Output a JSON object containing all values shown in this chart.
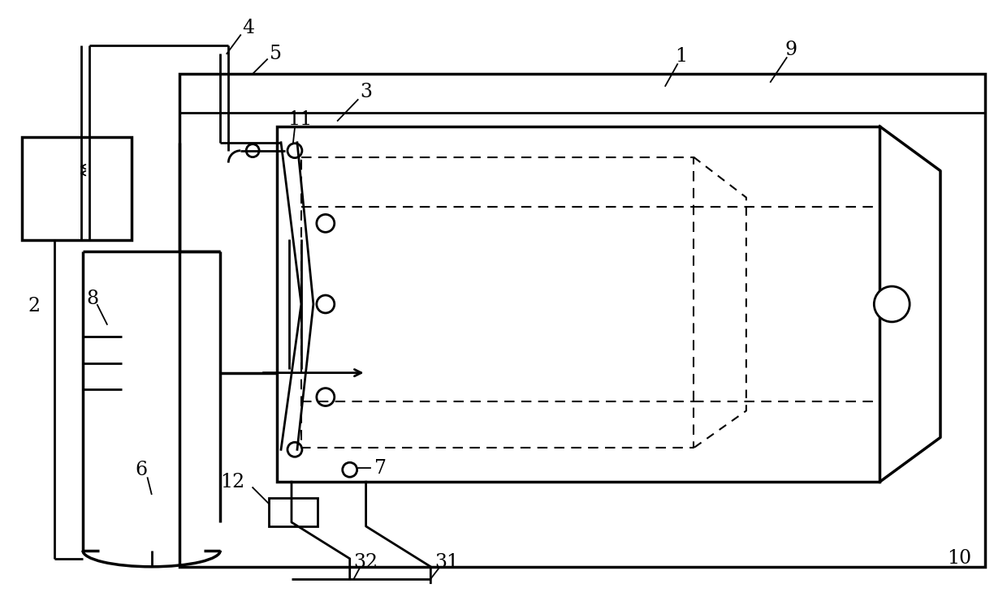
{
  "bg_color": "#ffffff",
  "line_color": "#000000",
  "lw_thin": 1.5,
  "lw_med": 2.0,
  "lw_thick": 2.5,
  "fig_width": 12.4,
  "fig_height": 7.46,
  "dpi": 100
}
